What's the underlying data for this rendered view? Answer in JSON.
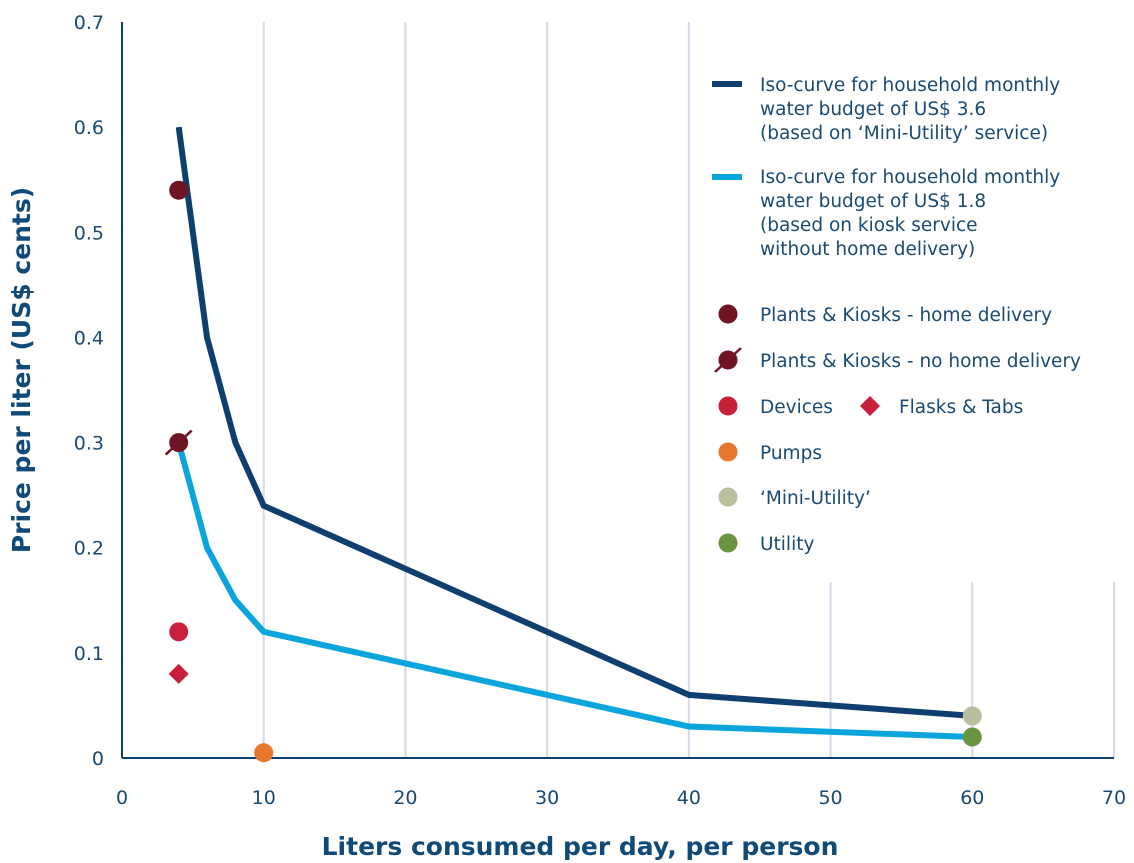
{
  "chart_data": {
    "type": "line",
    "title": "",
    "xlabel": "Liters consumed per day, per person",
    "ylabel": "Price per liter (US$ cents)",
    "xlim": [
      0,
      70
    ],
    "ylim": [
      0,
      0.7
    ],
    "x_ticks": [
      0,
      10,
      20,
      30,
      40,
      50,
      60,
      70
    ],
    "y_ticks": [
      0,
      0.1,
      0.2,
      0.3,
      0.4,
      0.5,
      0.6,
      0.7
    ],
    "x_tick_labels": [
      "0",
      "10",
      "20",
      "30",
      "40",
      "50",
      "60",
      "70"
    ],
    "y_tick_labels": [
      "0",
      "0.1",
      "0.2",
      "0.3",
      "0.4",
      "0.5",
      "0.6",
      "0.7"
    ],
    "grid": "vertical",
    "legend_position": "top-right",
    "series": [
      {
        "name": "Iso-curve for household monthly water budget of US$ 3.6 (based on 'Mini-Utility' service)",
        "legend_lines": [
          "Iso-curve for household monthly",
          "water budget of US$ 3.6",
          "(based on ‘Mini-Utility’ service)"
        ],
        "kind": "line",
        "color": "#0f3f6e",
        "x": [
          4,
          6,
          8,
          10,
          40,
          60
        ],
        "y": [
          0.6,
          0.4,
          0.3,
          0.24,
          0.06,
          0.04
        ]
      },
      {
        "name": "Iso-curve for household monthly water budget of US$ 1.8 (based on kiosk service without home delivery)",
        "legend_lines": [
          "Iso-curve for household monthly",
          "water budget of US$ 1.8",
          "(based on kiosk service",
          "without home delivery)"
        ],
        "kind": "line",
        "color": "#0aa5dc",
        "x": [
          4,
          6,
          8,
          10,
          40,
          60
        ],
        "y": [
          0.3,
          0.2,
          0.15,
          0.12,
          0.03,
          0.02
        ]
      },
      {
        "name": "Plants & Kiosks - home delivery",
        "kind": "point",
        "marker": "circle",
        "color": "#6e1423",
        "x": [
          4
        ],
        "y": [
          0.54
        ]
      },
      {
        "name": "Plants & Kiosks - no home delivery",
        "kind": "point",
        "marker": "circle-slash",
        "color": "#6e1423",
        "x": [
          4
        ],
        "y": [
          0.3
        ]
      },
      {
        "name": "Devices",
        "kind": "point",
        "marker": "circle",
        "color": "#c8203a",
        "x": [
          4
        ],
        "y": [
          0.12
        ]
      },
      {
        "name": "Flasks & Tabs",
        "kind": "point",
        "marker": "diamond",
        "color": "#c8203a",
        "x": [
          4
        ],
        "y": [
          0.08
        ]
      },
      {
        "name": "Pumps",
        "kind": "point",
        "marker": "circle",
        "color": "#e8772e",
        "x": [
          10
        ],
        "y": [
          0.005
        ]
      },
      {
        "name": "‘Mini-Utility’",
        "kind": "point",
        "marker": "circle",
        "color": "#b7bf9f",
        "x": [
          60
        ],
        "y": [
          0.04
        ]
      },
      {
        "name": "Utility",
        "kind": "point",
        "marker": "circle",
        "color": "#6b9441",
        "x": [
          60
        ],
        "y": [
          0.02
        ]
      }
    ]
  }
}
